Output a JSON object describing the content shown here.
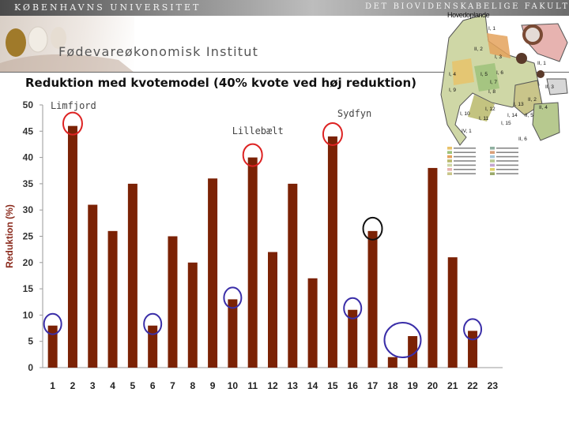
{
  "header": {
    "university": "KØBENHAVNS UNIVERSITET",
    "faculty": "DET BIOVIDENSKABELIGE FAKULTET",
    "institute": "Fødevareøkonomisk Institut"
  },
  "map": {
    "title": "Hovedoplande",
    "region_labels": [
      "I, 1",
      "II, 2",
      "I, 3",
      "II, 1",
      "I, 4",
      "I, 5",
      "I, 6",
      "I, 7",
      "I, 8",
      "II, 3",
      "I, 9",
      "II, 2",
      "I, 10",
      "I, 11",
      "I, 12",
      "I, 13",
      "I, 14",
      "II, 4",
      "II, 5",
      "I, 15",
      "IV, 1",
      "II, 6"
    ]
  },
  "chart_data": {
    "type": "bar",
    "title": "Reduktion med kvotemodel (40% kvote ved høj reduktion)",
    "xlabel": "",
    "ylabel": "Reduktion (%)",
    "ylim": [
      0,
      50
    ],
    "yticks": [
      0,
      5,
      10,
      15,
      20,
      25,
      30,
      35,
      40,
      45,
      50
    ],
    "grid": false,
    "legend": "none",
    "categories": [
      "1",
      "2",
      "3",
      "4",
      "5",
      "6",
      "7",
      "8",
      "9",
      "10",
      "11",
      "12",
      "13",
      "14",
      "15",
      "16",
      "17",
      "18",
      "19",
      "20",
      "21",
      "22",
      "23"
    ],
    "values": [
      8,
      46,
      31,
      26,
      35,
      8,
      25,
      20,
      36,
      13,
      40,
      22,
      35,
      17,
      44,
      11,
      26,
      2,
      6,
      38,
      21,
      7,
      null
    ],
    "bar_color": "#7b2205",
    "annotations": [
      {
        "text": "Limfjord",
        "category": "2"
      },
      {
        "text": "Lillebælt",
        "category": "11"
      },
      {
        "text": "Sydfyn",
        "category": "15"
      }
    ],
    "highlights": {
      "red": [
        "2",
        "11",
        "15"
      ],
      "blue": [
        "1",
        "6",
        "10",
        "16",
        "18-19",
        "22"
      ],
      "black": [
        "17"
      ]
    },
    "colors": {
      "red_circle": "#dd2222",
      "blue_circle": "#3a2ea8",
      "black_circle": "#111111"
    }
  }
}
